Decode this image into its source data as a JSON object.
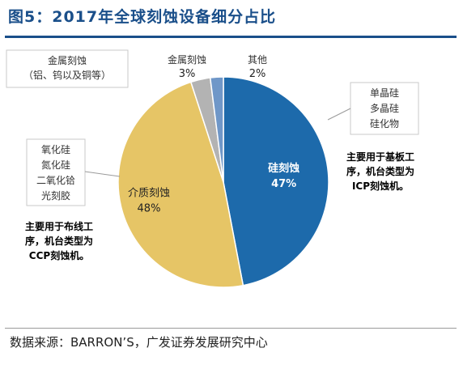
{
  "header": {
    "title": "图5：2017年全球刻蚀设备细分占比"
  },
  "footer": {
    "source": "数据来源：BARRON’S，广发证券发展研究中心"
  },
  "chart_data": {
    "type": "pie",
    "title": "图5：2017年全球刻蚀设备细分占比",
    "slices": [
      {
        "label": "硅刻蚀",
        "percent_label": "47%",
        "value": 47,
        "color": "#1d6aab"
      },
      {
        "label": "介质刻蚀",
        "percent_label": "48%",
        "value": 48,
        "color": "#e6c566"
      },
      {
        "label": "金属刻蚀",
        "percent_label": "3%",
        "value": 3,
        "color": "#b3b3b3"
      },
      {
        "label": "其他",
        "percent_label": "2%",
        "value": 2,
        "color": "#6f97c8"
      }
    ],
    "callouts": {
      "metal_materials": [
        "金属刻蚀",
        "（铝、钨以及铜等）"
      ],
      "silicon_materials": [
        "单晶硅",
        "多晶硅",
        "硅化物"
      ],
      "dielectric_materials": [
        "氧化硅",
        "氮化硅",
        "二氧化铪",
        "光刻胶"
      ]
    },
    "notes": {
      "silicon_note": [
        "主要用于基板工",
        "序，机台类型为",
        "ICP刻蚀机。"
      ],
      "dielectric_note": [
        "主要用于布线工",
        "序，机台类型为",
        "CCP刻蚀机。"
      ]
    }
  }
}
